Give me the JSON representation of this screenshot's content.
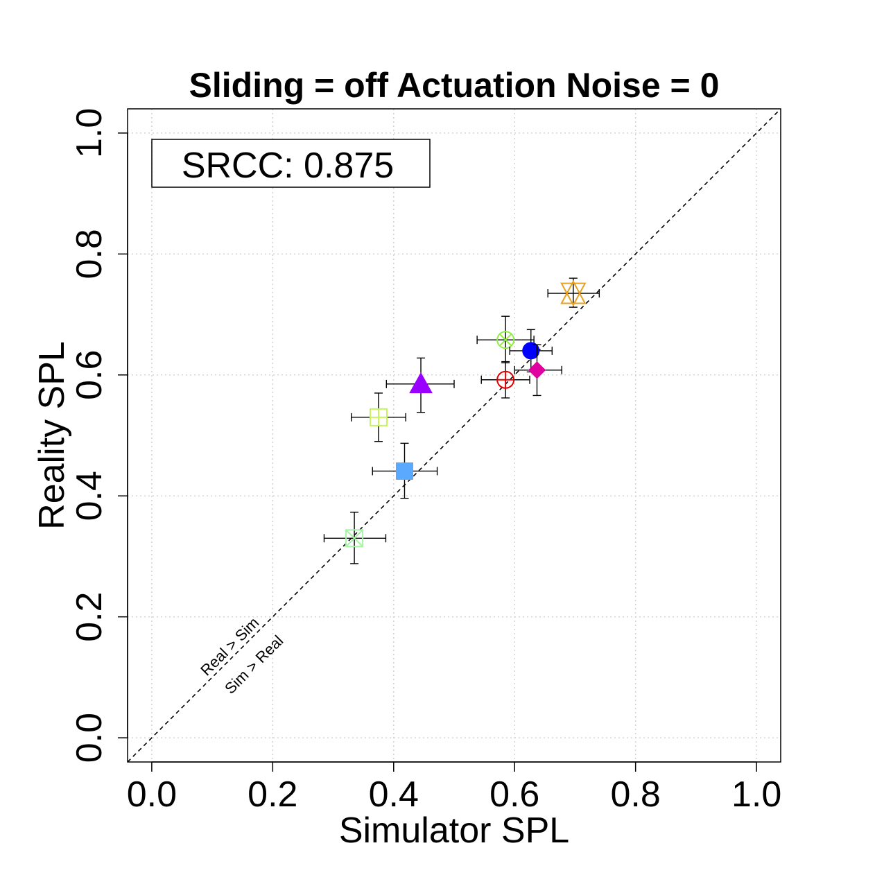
{
  "chart_data": {
    "type": "scatter",
    "title": "Sliding = off Actuation Noise = 0",
    "xlabel": "Simulator SPL",
    "ylabel": "Reality SPL",
    "xlim": [
      -0.04,
      1.04
    ],
    "ylim": [
      -0.04,
      1.04
    ],
    "xticks": [
      "0.0",
      "0.2",
      "0.4",
      "0.6",
      "0.8",
      "1.0"
    ],
    "yticks": [
      "0.0",
      "0.2",
      "0.4",
      "0.6",
      "0.8",
      "1.0"
    ],
    "grid": true,
    "srcc_label": "SRCC: 0.875",
    "diagonal_label_upper": "Real > Sim",
    "diagonal_label_lower": "Sim > Real",
    "points": [
      {
        "x": 0.335,
        "y": 0.33,
        "xerr": [
          0.285,
          0.387
        ],
        "yerr": [
          0.288,
          0.373
        ],
        "marker": "square-cross",
        "color": "#a6f5a6"
      },
      {
        "x": 0.418,
        "y": 0.441,
        "xerr": [
          0.365,
          0.472
        ],
        "yerr": [
          0.396,
          0.487
        ],
        "marker": "square-filled",
        "color": "#5aa9ff"
      },
      {
        "x": 0.375,
        "y": 0.53,
        "xerr": [
          0.33,
          0.42
        ],
        "yerr": [
          0.49,
          0.57
        ],
        "marker": "square-plus",
        "color": "#c6f55a"
      },
      {
        "x": 0.445,
        "y": 0.585,
        "xerr": [
          0.388,
          0.5
        ],
        "yerr": [
          0.538,
          0.628
        ],
        "marker": "triangle-filled",
        "color": "#9a00ff"
      },
      {
        "x": 0.585,
        "y": 0.592,
        "xerr": [
          0.545,
          0.625
        ],
        "yerr": [
          0.562,
          0.622
        ],
        "marker": "circle-plus",
        "color": "#e00000"
      },
      {
        "x": 0.585,
        "y": 0.658,
        "xerr": [
          0.538,
          0.632
        ],
        "yerr": [
          0.62,
          0.697
        ],
        "marker": "circle-x",
        "color": "#90f040"
      },
      {
        "x": 0.627,
        "y": 0.64,
        "xerr": [
          0.592,
          0.662
        ],
        "yerr": [
          0.605,
          0.675
        ],
        "marker": "circle-filled",
        "color": "#0000ff"
      },
      {
        "x": 0.637,
        "y": 0.608,
        "xerr": [
          0.6,
          0.678
        ],
        "yerr": [
          0.566,
          0.65
        ],
        "marker": "diamond-filled",
        "color": "#e000a0"
      },
      {
        "x": 0.697,
        "y": 0.735,
        "xerr": [
          0.655,
          0.74
        ],
        "yerr": [
          0.712,
          0.76
        ],
        "marker": "star-triangles",
        "color": "#e8a020"
      }
    ]
  }
}
